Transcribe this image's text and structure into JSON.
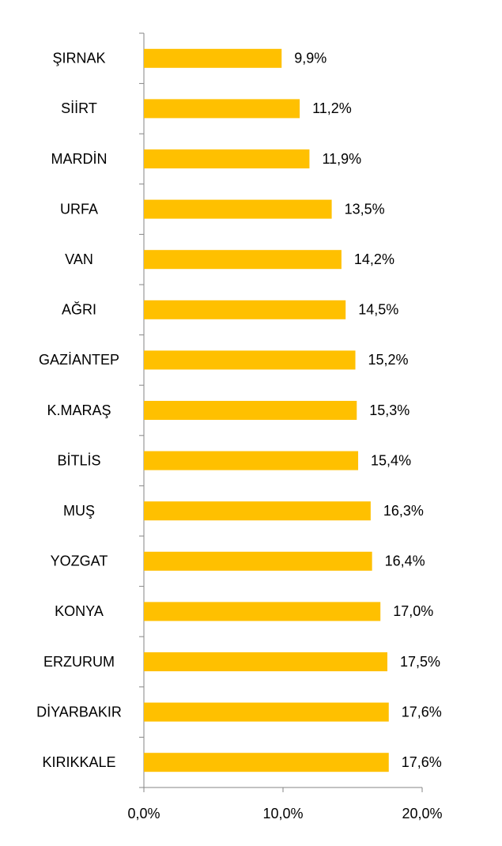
{
  "chart_data": {
    "type": "bar",
    "orientation": "horizontal",
    "categories": [
      "ŞIRNAK",
      "SİİRT",
      "MARDİN",
      "URFA",
      "VAN",
      "AĞRI",
      "GAZİANTEP",
      "K.MARAŞ",
      "BİTLİS",
      "MUŞ",
      "YOZGAT",
      "KONYA",
      "ERZURUM",
      "DİYARBAKIR",
      "KIRIKKALE"
    ],
    "values": [
      9.9,
      11.2,
      11.9,
      13.5,
      14.2,
      14.5,
      15.2,
      15.3,
      15.4,
      16.3,
      16.4,
      17.0,
      17.5,
      17.6,
      17.6
    ],
    "value_labels": [
      "9,9%",
      "11,2%",
      "11,9%",
      "13,5%",
      "14,2%",
      "14,5%",
      "15,2%",
      "15,3%",
      "15,4%",
      "16,3%",
      "16,4%",
      "17,0%",
      "17,5%",
      "17,6%",
      "17,6%"
    ],
    "color": "#FFC000",
    "xlim": [
      0,
      20
    ],
    "xticks": [
      {
        "value": 0,
        "label": "0,0%"
      },
      {
        "value": 10,
        "label": "10,0%"
      },
      {
        "value": 20,
        "label": "20,0%"
      }
    ],
    "grid": false
  }
}
